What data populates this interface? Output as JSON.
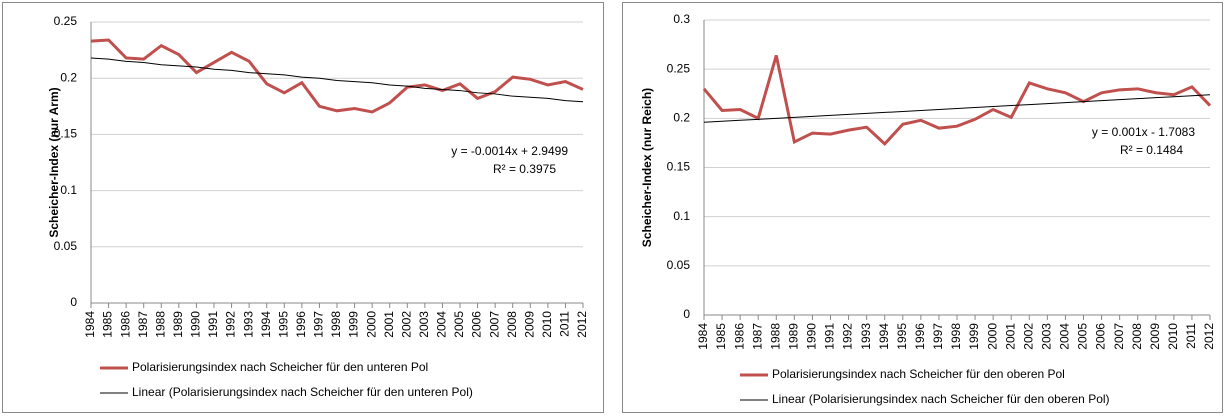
{
  "chart_data": [
    {
      "type": "line",
      "ylabel": "Scheicher-Index (nur Arm)",
      "categories": [
        "1984",
        "1985",
        "1986",
        "1987",
        "1988",
        "1989",
        "1990",
        "1991",
        "1992",
        "1993",
        "1994",
        "1995",
        "1996",
        "1997",
        "1998",
        "1999",
        "2000",
        "2001",
        "2002",
        "2003",
        "2004",
        "2005",
        "2006",
        "2007",
        "2008",
        "2009",
        "2010",
        "2011",
        "2012"
      ],
      "series": [
        {
          "name": "Polarisierungsindex nach Scheicher für den unteren Pol",
          "color": "#c0504d",
          "values": [
            0.233,
            0.234,
            0.218,
            0.217,
            0.229,
            0.221,
            0.205,
            0.214,
            0.223,
            0.215,
            0.195,
            0.187,
            0.196,
            0.175,
            0.171,
            0.173,
            0.17,
            0.178,
            0.192,
            0.194,
            0.189,
            0.195,
            0.182,
            0.188,
            0.201,
            0.199,
            0.194,
            0.197,
            0.19
          ]
        },
        {
          "name": "Linear (Polarisierungsindex nach Scheicher für den unteren Pol)",
          "color": "#000000",
          "values": [
            0.218,
            0.217,
            0.215,
            0.214,
            0.212,
            0.211,
            0.21,
            0.208,
            0.207,
            0.205,
            0.204,
            0.203,
            0.201,
            0.2,
            0.198,
            0.197,
            0.196,
            0.194,
            0.193,
            0.191,
            0.19,
            0.189,
            0.187,
            0.186,
            0.184,
            0.183,
            0.182,
            0.18,
            0.179
          ]
        }
      ],
      "annotations": [
        "y = -0.0014x + 2.9499",
        "R² = 0.3975"
      ],
      "ylim": [
        0,
        0.25
      ],
      "yticks": [
        0,
        0.05,
        0.1,
        0.15,
        0.2,
        0.25
      ],
      "grid": true
    },
    {
      "type": "line",
      "ylabel": "Scheicher-Index (nur Reich)",
      "categories": [
        "1984",
        "1985",
        "1986",
        "1987",
        "1988",
        "1989",
        "1990",
        "1991",
        "1992",
        "1993",
        "1994",
        "1995",
        "1996",
        "1997",
        "1998",
        "1999",
        "2000",
        "2001",
        "2002",
        "2003",
        "2004",
        "2005",
        "2006",
        "2007",
        "2008",
        "2009",
        "2010",
        "2011",
        "2012"
      ],
      "series": [
        {
          "name": "Polarisierungsindex nach Scheicher für den oberen Pol",
          "color": "#c0504d",
          "values": [
            0.23,
            0.208,
            0.209,
            0.2,
            0.264,
            0.176,
            0.185,
            0.184,
            0.188,
            0.191,
            0.174,
            0.194,
            0.198,
            0.19,
            0.192,
            0.199,
            0.209,
            0.201,
            0.236,
            0.23,
            0.226,
            0.217,
            0.226,
            0.229,
            0.23,
            0.226,
            0.224,
            0.232,
            0.213
          ]
        },
        {
          "name": "Linear (Polarisierungsindex nach Scheicher für den oberen Pol)",
          "color": "#000000",
          "values": [
            0.196,
            0.197,
            0.198,
            0.199,
            0.2,
            0.201,
            0.202,
            0.203,
            0.204,
            0.205,
            0.206,
            0.207,
            0.208,
            0.209,
            0.21,
            0.211,
            0.212,
            0.213,
            0.214,
            0.215,
            0.216,
            0.217,
            0.218,
            0.219,
            0.22,
            0.221,
            0.222,
            0.223,
            0.224
          ]
        }
      ],
      "annotations": [
        "y = 0.001x - 1.7083",
        "R² = 0.1484"
      ],
      "ylim": [
        0,
        0.3
      ],
      "yticks": [
        0,
        0.05,
        0.1,
        0.15,
        0.2,
        0.25,
        0.3
      ],
      "grid": true
    }
  ]
}
